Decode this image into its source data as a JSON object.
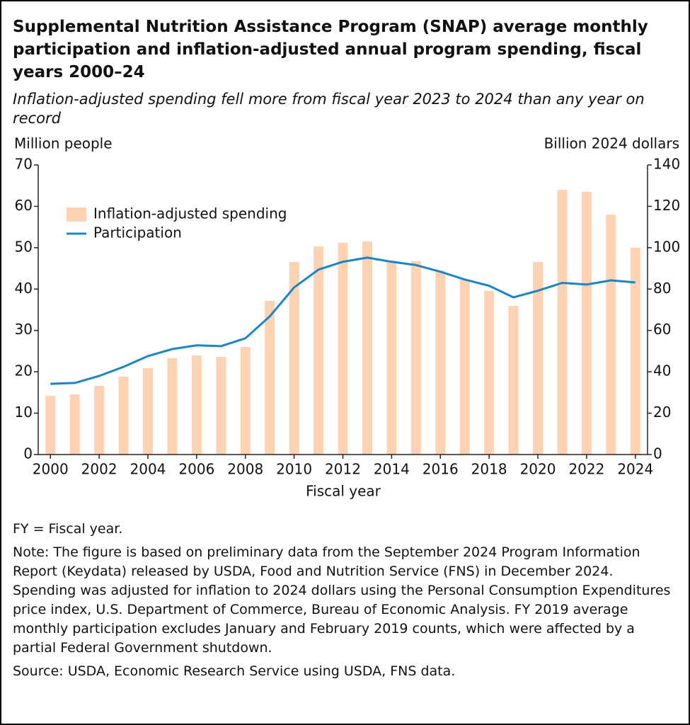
{
  "chart_data": {
    "type": "combo",
    "title": "Supplemental Nutrition Assistance Program (SNAP) average monthly participation and inflation-adjusted annual program spending, fiscal years 2000–24",
    "subtitle": "Inflation-adjusted spending fell more from fiscal year 2023 to 2024 than any year on record",
    "ylabel": "Million people",
    "y2label": "Billion 2024 dollars",
    "xlabel": "Fiscal year",
    "x": [
      2000,
      2001,
      2002,
      2003,
      2004,
      2005,
      2006,
      2007,
      2008,
      2009,
      2010,
      2011,
      2012,
      2013,
      2014,
      2015,
      2016,
      2017,
      2018,
      2019,
      2020,
      2021,
      2022,
      2023,
      2024
    ],
    "xlim": [
      1999.5,
      2024.5
    ],
    "xticks": [
      2000,
      2002,
      2004,
      2006,
      2008,
      2010,
      2012,
      2014,
      2016,
      2018,
      2020,
      2022,
      2024
    ],
    "ylim": [
      0,
      70
    ],
    "yticks": [
      0,
      10,
      20,
      30,
      40,
      50,
      60,
      70
    ],
    "y2lim": [
      0,
      140
    ],
    "y2ticks": [
      0,
      20,
      40,
      60,
      80,
      100,
      120,
      140
    ],
    "legend": "upper-left",
    "series": [
      {
        "name": "Inflation-adjusted spending",
        "type": "bar",
        "axis": "y2",
        "color": "#fdd3b4",
        "values": [
          28.4,
          29.1,
          33.2,
          37.7,
          41.8,
          46.6,
          47.9,
          47.2,
          52.0,
          74.3,
          93.1,
          100.6,
          102.4,
          103.0,
          93.8,
          93.5,
          89.0,
          84.6,
          79.1,
          71.9,
          93.1,
          128.0,
          127.0,
          116.0,
          100.0
        ]
      },
      {
        "name": "Participation",
        "type": "line",
        "axis": "y",
        "color": "#1a85c8",
        "values": [
          17.1,
          17.3,
          19.0,
          21.2,
          23.8,
          25.5,
          26.4,
          26.2,
          28.1,
          33.4,
          40.4,
          44.7,
          46.6,
          47.6,
          46.6,
          45.8,
          44.2,
          42.3,
          40.8,
          38.0,
          39.6,
          41.5,
          41.1,
          42.1,
          41.6
        ]
      }
    ],
    "notes": [
      "FY = Fiscal year.",
      "Note: The figure is based on preliminary data from the September 2024 Program Information Report (Keydata) released by USDA, Food and Nutrition Service (FNS) in December 2024. Spending was adjusted for inflation to 2024 dollars using the Personal Consumption Expenditures price index, U.S. Department of Commerce, Bureau of Economic Analysis. FY 2019 average monthly participation excludes January and February 2019 counts, which were affected by a partial Federal Government shutdown.",
      "Source: USDA, Economic Research Service using USDA, FNS data."
    ]
  }
}
